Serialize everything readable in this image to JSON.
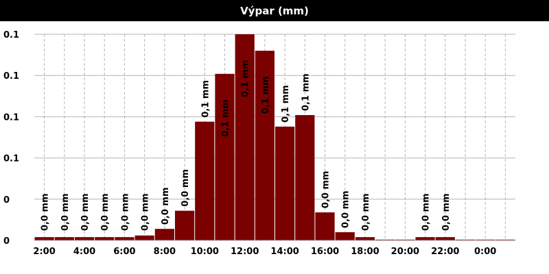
{
  "chart_data": {
    "type": "bar",
    "title": "Výpar (mm)",
    "xlabel": "",
    "ylabel": "",
    "grid": true,
    "ylim": [
      0,
      0.125
    ],
    "y_tick_values": [
      0,
      0.025,
      0.05,
      0.075,
      0.1,
      0.125
    ],
    "y_tick_labels": [
      "0",
      "0",
      "0.1",
      "0.1",
      "0.1",
      "0.1"
    ],
    "x_tick_labels": [
      "2:00",
      "4:00",
      "6:00",
      "8:00",
      "10:00",
      "12:00",
      "14:00",
      "16:00",
      "18:00",
      "20:00",
      "22:00",
      "0:00"
    ],
    "categories": [
      "2:00",
      "3:00",
      "4:00",
      "5:00",
      "6:00",
      "7:00",
      "8:00",
      "9:00",
      "10:00",
      "11:00",
      "12:00",
      "13:00",
      "14:00",
      "15:00",
      "16:00",
      "17:00",
      "18:00",
      "19:00",
      "20:00",
      "21:00",
      "22:00",
      "23:00",
      "0:00",
      "1:00"
    ],
    "values": [
      0.002,
      0.002,
      0.002,
      0.002,
      0.002,
      0.003,
      0.007,
      0.018,
      0.072,
      0.101,
      0.125,
      0.115,
      0.069,
      0.076,
      0.017,
      0.005,
      0.002,
      0.0005,
      0.0005,
      0.002,
      0.002,
      0.0005,
      0.0005,
      0.0005
    ],
    "data_labels": [
      "0,0 mm",
      "0,0 mm",
      "0,0 mm",
      "0,0 mm",
      "0,0 mm",
      "0,0 mm",
      "0,0 mm",
      "0,0 mm",
      "0,1 mm",
      "0,1 mm",
      "0,1 mm",
      "0,1 mm",
      "0,1 mm",
      "0,1 mm",
      "0,0 mm",
      "0,0 mm",
      "0,0 mm",
      "",
      "",
      "0,0 mm",
      "0,0 mm",
      "",
      "",
      ""
    ],
    "bar_color": "#7b0000",
    "grid_color": "#b4b4b4"
  }
}
